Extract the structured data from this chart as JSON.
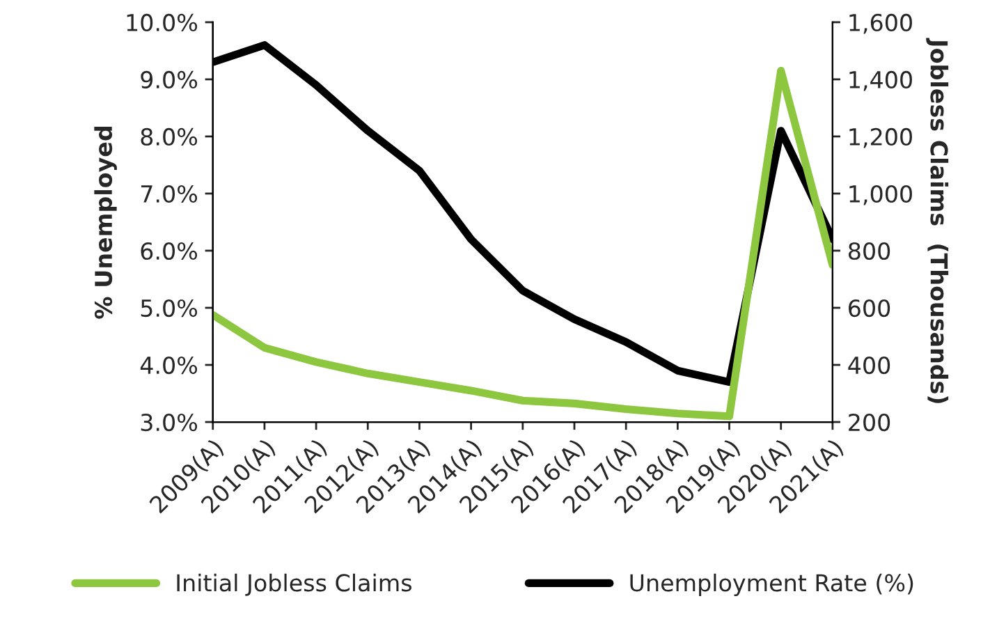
{
  "chart_data": {
    "type": "line",
    "categories": [
      "2009(A)",
      "2010(A)",
      "2011(A)",
      "2012(A)",
      "2013(A)",
      "2014(A)",
      "2015(A)",
      "2016(A)",
      "2017(A)",
      "2018(A)",
      "2019(A)",
      "2020(A)",
      "2021(A)"
    ],
    "series": [
      {
        "name": "Initial Jobless Claims",
        "color": "#8dc63f",
        "axis": "y2",
        "values": [
          575,
          460,
          410,
          370,
          340,
          310,
          275,
          265,
          245,
          230,
          220,
          1430,
          750
        ]
      },
      {
        "name": "Unemployment Rate (%)",
        "color": "#000000",
        "axis": "y",
        "values": [
          9.3,
          9.6,
          8.9,
          8.1,
          7.4,
          6.2,
          5.3,
          4.8,
          4.4,
          3.9,
          3.7,
          8.1,
          6.2
        ]
      }
    ],
    "ylabel": "% Unemployed",
    "y2label": "Jobless Claims  (Thousands)",
    "ylim": [
      3,
      10
    ],
    "yticks": [
      {
        "value": 3,
        "label": "3.0%"
      },
      {
        "value": 4,
        "label": "4.0%"
      },
      {
        "value": 5,
        "label": "5.0%"
      },
      {
        "value": 6,
        "label": "6.0%"
      },
      {
        "value": 7,
        "label": "7.0%"
      },
      {
        "value": 8,
        "label": "8.0%"
      },
      {
        "value": 9,
        "label": "9.0%"
      },
      {
        "value": 10,
        "label": "10.0%"
      }
    ],
    "y2lim": [
      200,
      1600
    ],
    "y2ticks": [
      200,
      400,
      600,
      800,
      {
        "value": 1000,
        "label": "1,000"
      },
      {
        "value": 1200,
        "label": "1,200"
      },
      {
        "value": 1400,
        "label": "1,400"
      },
      {
        "value": 1600,
        "label": "1,600"
      }
    ],
    "legend": "bottom",
    "grid": false,
    "marker": "none",
    "line_style": "solid"
  }
}
